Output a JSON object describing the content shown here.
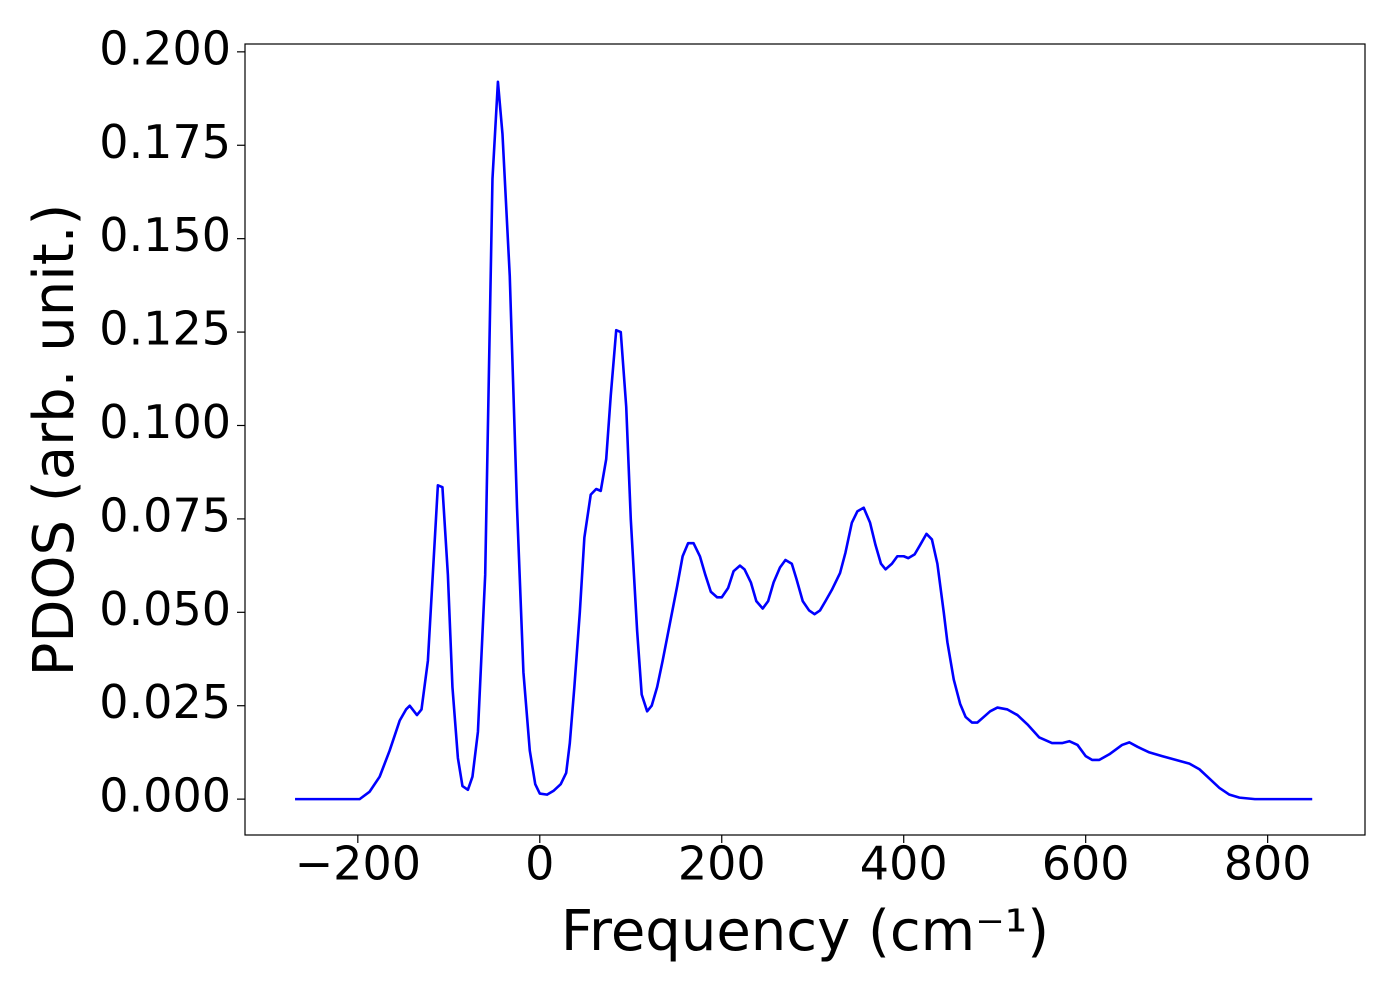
{
  "chart_data": {
    "type": "line",
    "x_label": "Frequency (cm⁻¹)",
    "y_label": "PDOS (arb. unit.)",
    "x": [
      -269,
      -198,
      -187,
      -176,
      -165,
      -154,
      -147,
      -143,
      -135,
      -130,
      -123,
      -112,
      -107,
      -101,
      -96,
      -90,
      -85,
      -79,
      -74,
      -68,
      -60,
      -52,
      -46,
      -41,
      -33,
      -25,
      -18,
      -11,
      -5,
      0,
      8,
      15,
      23,
      29,
      33,
      38,
      44,
      49,
      56,
      62,
      67,
      73,
      78,
      84,
      89,
      95,
      100,
      107,
      112,
      118,
      123,
      129,
      135,
      143,
      151,
      157,
      163,
      169,
      176,
      182,
      188,
      195,
      200,
      207,
      213,
      220,
      225,
      232,
      238,
      245,
      251,
      257,
      264,
      270,
      277,
      282,
      289,
      296,
      302,
      308,
      314,
      321,
      330,
      336,
      343,
      349,
      356,
      363,
      369,
      375,
      380,
      387,
      393,
      400,
      405,
      412,
      418,
      425,
      431,
      437,
      444,
      448,
      455,
      462,
      468,
      475,
      481,
      488,
      495,
      503,
      514,
      525,
      536,
      549,
      563,
      574,
      582,
      591,
      600,
      607,
      615,
      626,
      640,
      648,
      657,
      670,
      684,
      699,
      714,
      725,
      736,
      747,
      758,
      769,
      786,
      849
    ],
    "series": [
      {
        "color": "#0000ff",
        "values": [
          0,
          0,
          0.002,
          0.006,
          0.013,
          0.021,
          0.024,
          0.025,
          0.0225,
          0.024,
          0.037,
          0.084,
          0.0835,
          0.06,
          0.03,
          0.011,
          0.0035,
          0.0025,
          0.006,
          0.018,
          0.06,
          0.166,
          0.192,
          0.178,
          0.14,
          0.078,
          0.034,
          0.013,
          0.004,
          0.0015,
          0.0012,
          0.0022,
          0.004,
          0.007,
          0.015,
          0.03,
          0.05,
          0.07,
          0.0815,
          0.083,
          0.0825,
          0.091,
          0.108,
          0.1255,
          0.125,
          0.105,
          0.075,
          0.045,
          0.028,
          0.0235,
          0.025,
          0.03,
          0.037,
          0.047,
          0.057,
          0.065,
          0.0685,
          0.0685,
          0.065,
          0.06,
          0.0555,
          0.054,
          0.054,
          0.0565,
          0.061,
          0.0625,
          0.0615,
          0.058,
          0.053,
          0.051,
          0.053,
          0.058,
          0.062,
          0.064,
          0.063,
          0.059,
          0.053,
          0.0505,
          0.0495,
          0.0505,
          0.053,
          0.056,
          0.0605,
          0.066,
          0.074,
          0.077,
          0.078,
          0.074,
          0.068,
          0.063,
          0.0615,
          0.063,
          0.065,
          0.065,
          0.0645,
          0.0655,
          0.068,
          0.071,
          0.0695,
          0.063,
          0.05,
          0.042,
          0.032,
          0.0255,
          0.022,
          0.0205,
          0.0205,
          0.022,
          0.0235,
          0.0245,
          0.024,
          0.0225,
          0.02,
          0.0165,
          0.015,
          0.015,
          0.0155,
          0.0145,
          0.0115,
          0.0105,
          0.0105,
          0.012,
          0.0145,
          0.0152,
          0.014,
          0.0125,
          0.0115,
          0.0105,
          0.0095,
          0.008,
          0.0055,
          0.003,
          0.0012,
          0.0004,
          0,
          0
        ]
      }
    ],
    "xlim": [
      -324,
      907
    ],
    "ylim": [
      -0.0096,
      0.2021
    ],
    "xticks": [
      {
        "value": -200,
        "label": "−200"
      },
      0,
      200,
      400,
      600,
      800
    ],
    "yticks": [
      {
        "value": 0,
        "label": "0.000"
      },
      {
        "value": 0.025,
        "label": "0.025"
      },
      {
        "value": 0.05,
        "label": "0.050"
      },
      {
        "value": 0.075,
        "label": "0.075"
      },
      {
        "value": 0.1,
        "label": "0.100"
      },
      {
        "value": 0.125,
        "label": "0.125"
      },
      {
        "value": 0.15,
        "label": "0.150"
      },
      {
        "value": 0.175,
        "label": "0.175"
      },
      {
        "value": 0.2,
        "label": "0.200"
      }
    ],
    "grid": false
  }
}
